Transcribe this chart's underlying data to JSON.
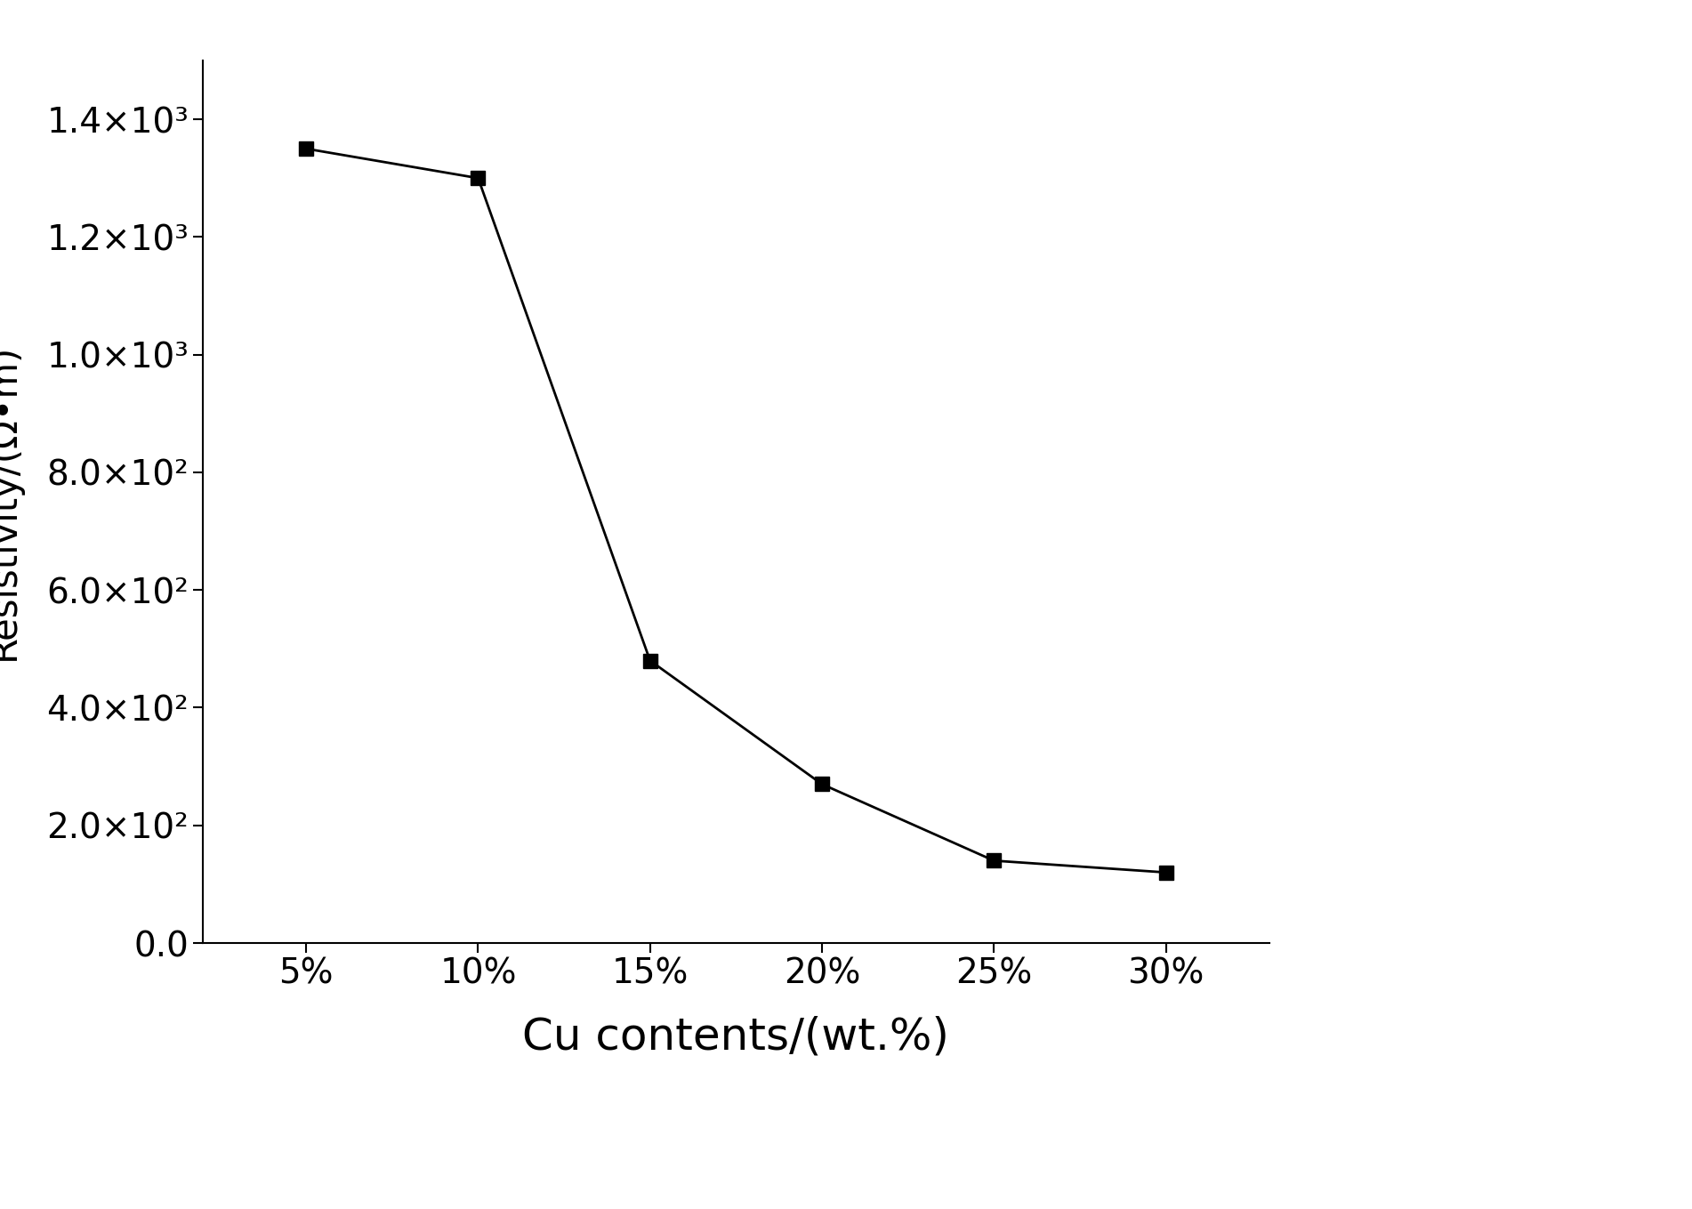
{
  "x_labels": [
    "5%",
    "10%",
    "15%",
    "20%",
    "25%",
    "30%"
  ],
  "x_values": [
    5,
    10,
    15,
    20,
    25,
    30
  ],
  "y_values": [
    1350,
    1300,
    480,
    270,
    140,
    120
  ],
  "xlabel": "Cu contents/(wt.%)",
  "ylabel": "Resistivity/(Ω•m)",
  "ylim": [
    0,
    1500
  ],
  "yticks": [
    0,
    200,
    400,
    600,
    800,
    1000,
    1200,
    1400
  ],
  "ytick_labels": [
    "0.0",
    "2.0×10²",
    "4.0×10²",
    "6.0×10²",
    "8.0×10²",
    "1.0×10³",
    "1.2×10³",
    "1.4×10³"
  ],
  "line_color": "#000000",
  "marker": "s",
  "marker_size": 12,
  "marker_color": "#000000",
  "line_width": 2.0,
  "background_color": "#ffffff",
  "xlabel_fontsize": 36,
  "ylabel_fontsize": 30,
  "tick_fontsize": 28,
  "xlim": [
    2,
    33
  ]
}
